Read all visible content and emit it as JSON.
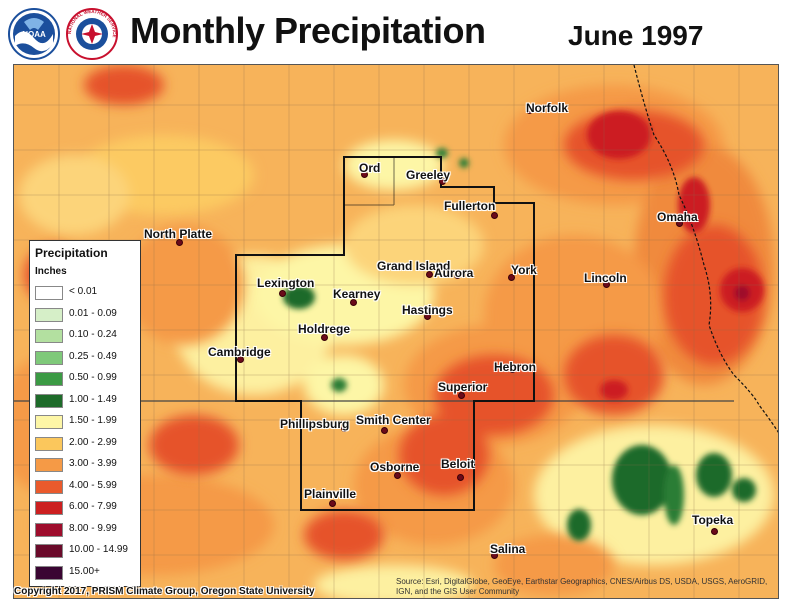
{
  "header": {
    "title": "Monthly Precipitation",
    "period": "June 1997"
  },
  "logos": [
    {
      "name": "noaa-logo",
      "icon": "noaa-seal-icon",
      "text": "NOAA"
    },
    {
      "name": "nws-logo",
      "icon": "nws-seal-icon",
      "text": "NATIONAL WEATHER SERVICE"
    }
  ],
  "legend": {
    "title": "Precipitation",
    "units": "Inches",
    "classes": [
      {
        "label": "< 0.01",
        "color": "#ffffff"
      },
      {
        "label": "0.01 - 0.09",
        "color": "#d6efc8"
      },
      {
        "label": "0.10 - 0.24",
        "color": "#b3e0a0"
      },
      {
        "label": "0.25 - 0.49",
        "color": "#7fc97a"
      },
      {
        "label": "0.50 - 0.99",
        "color": "#3b9a44"
      },
      {
        "label": "1.00 - 1.49",
        "color": "#1e6b2a"
      },
      {
        "label": "1.50 - 1.99",
        "color": "#fdf6a6"
      },
      {
        "label": "2.00 - 2.99",
        "color": "#fbc75c"
      },
      {
        "label": "3.00 - 3.99",
        "color": "#f59a46"
      },
      {
        "label": "4.00 - 5.99",
        "color": "#ea5a2c"
      },
      {
        "label": "6.00 - 7.99",
        "color": "#cc1f20"
      },
      {
        "label": "8.00 - 9.99",
        "color": "#9e0d2c"
      },
      {
        "label": "10.00 - 14.99",
        "color": "#6a0a2a"
      },
      {
        "label": "15.00+",
        "color": "#3a0532"
      }
    ]
  },
  "cities": [
    {
      "name": "Norfolk"
    },
    {
      "name": "Ord"
    },
    {
      "name": "Greeley"
    },
    {
      "name": "Fullerton"
    },
    {
      "name": "Omaha"
    },
    {
      "name": "North Platte"
    },
    {
      "name": "Grand Island"
    },
    {
      "name": "Aurora"
    },
    {
      "name": "York"
    },
    {
      "name": "Lincoln"
    },
    {
      "name": "Lexington"
    },
    {
      "name": "Kearney"
    },
    {
      "name": "Hastings"
    },
    {
      "name": "Holdrege"
    },
    {
      "name": "Cambridge"
    },
    {
      "name": "Hebron"
    },
    {
      "name": "Superior"
    },
    {
      "name": "Phillipsburg"
    },
    {
      "name": "Smith Center"
    },
    {
      "name": "Osborne"
    },
    {
      "name": "Beloit"
    },
    {
      "name": "Plainville"
    },
    {
      "name": "Topeka"
    },
    {
      "name": "Salina"
    }
  ],
  "footer": {
    "copyright": "Copyright 2017, PRISM Climate Group, Oregon State University",
    "source": "Source: Esri, DigitalGlobe, GeoEye, Earthstar Geographics, CNES/Airbus DS, USDA, USGS, AeroGRID, IGN, and the GIS User Community"
  }
}
